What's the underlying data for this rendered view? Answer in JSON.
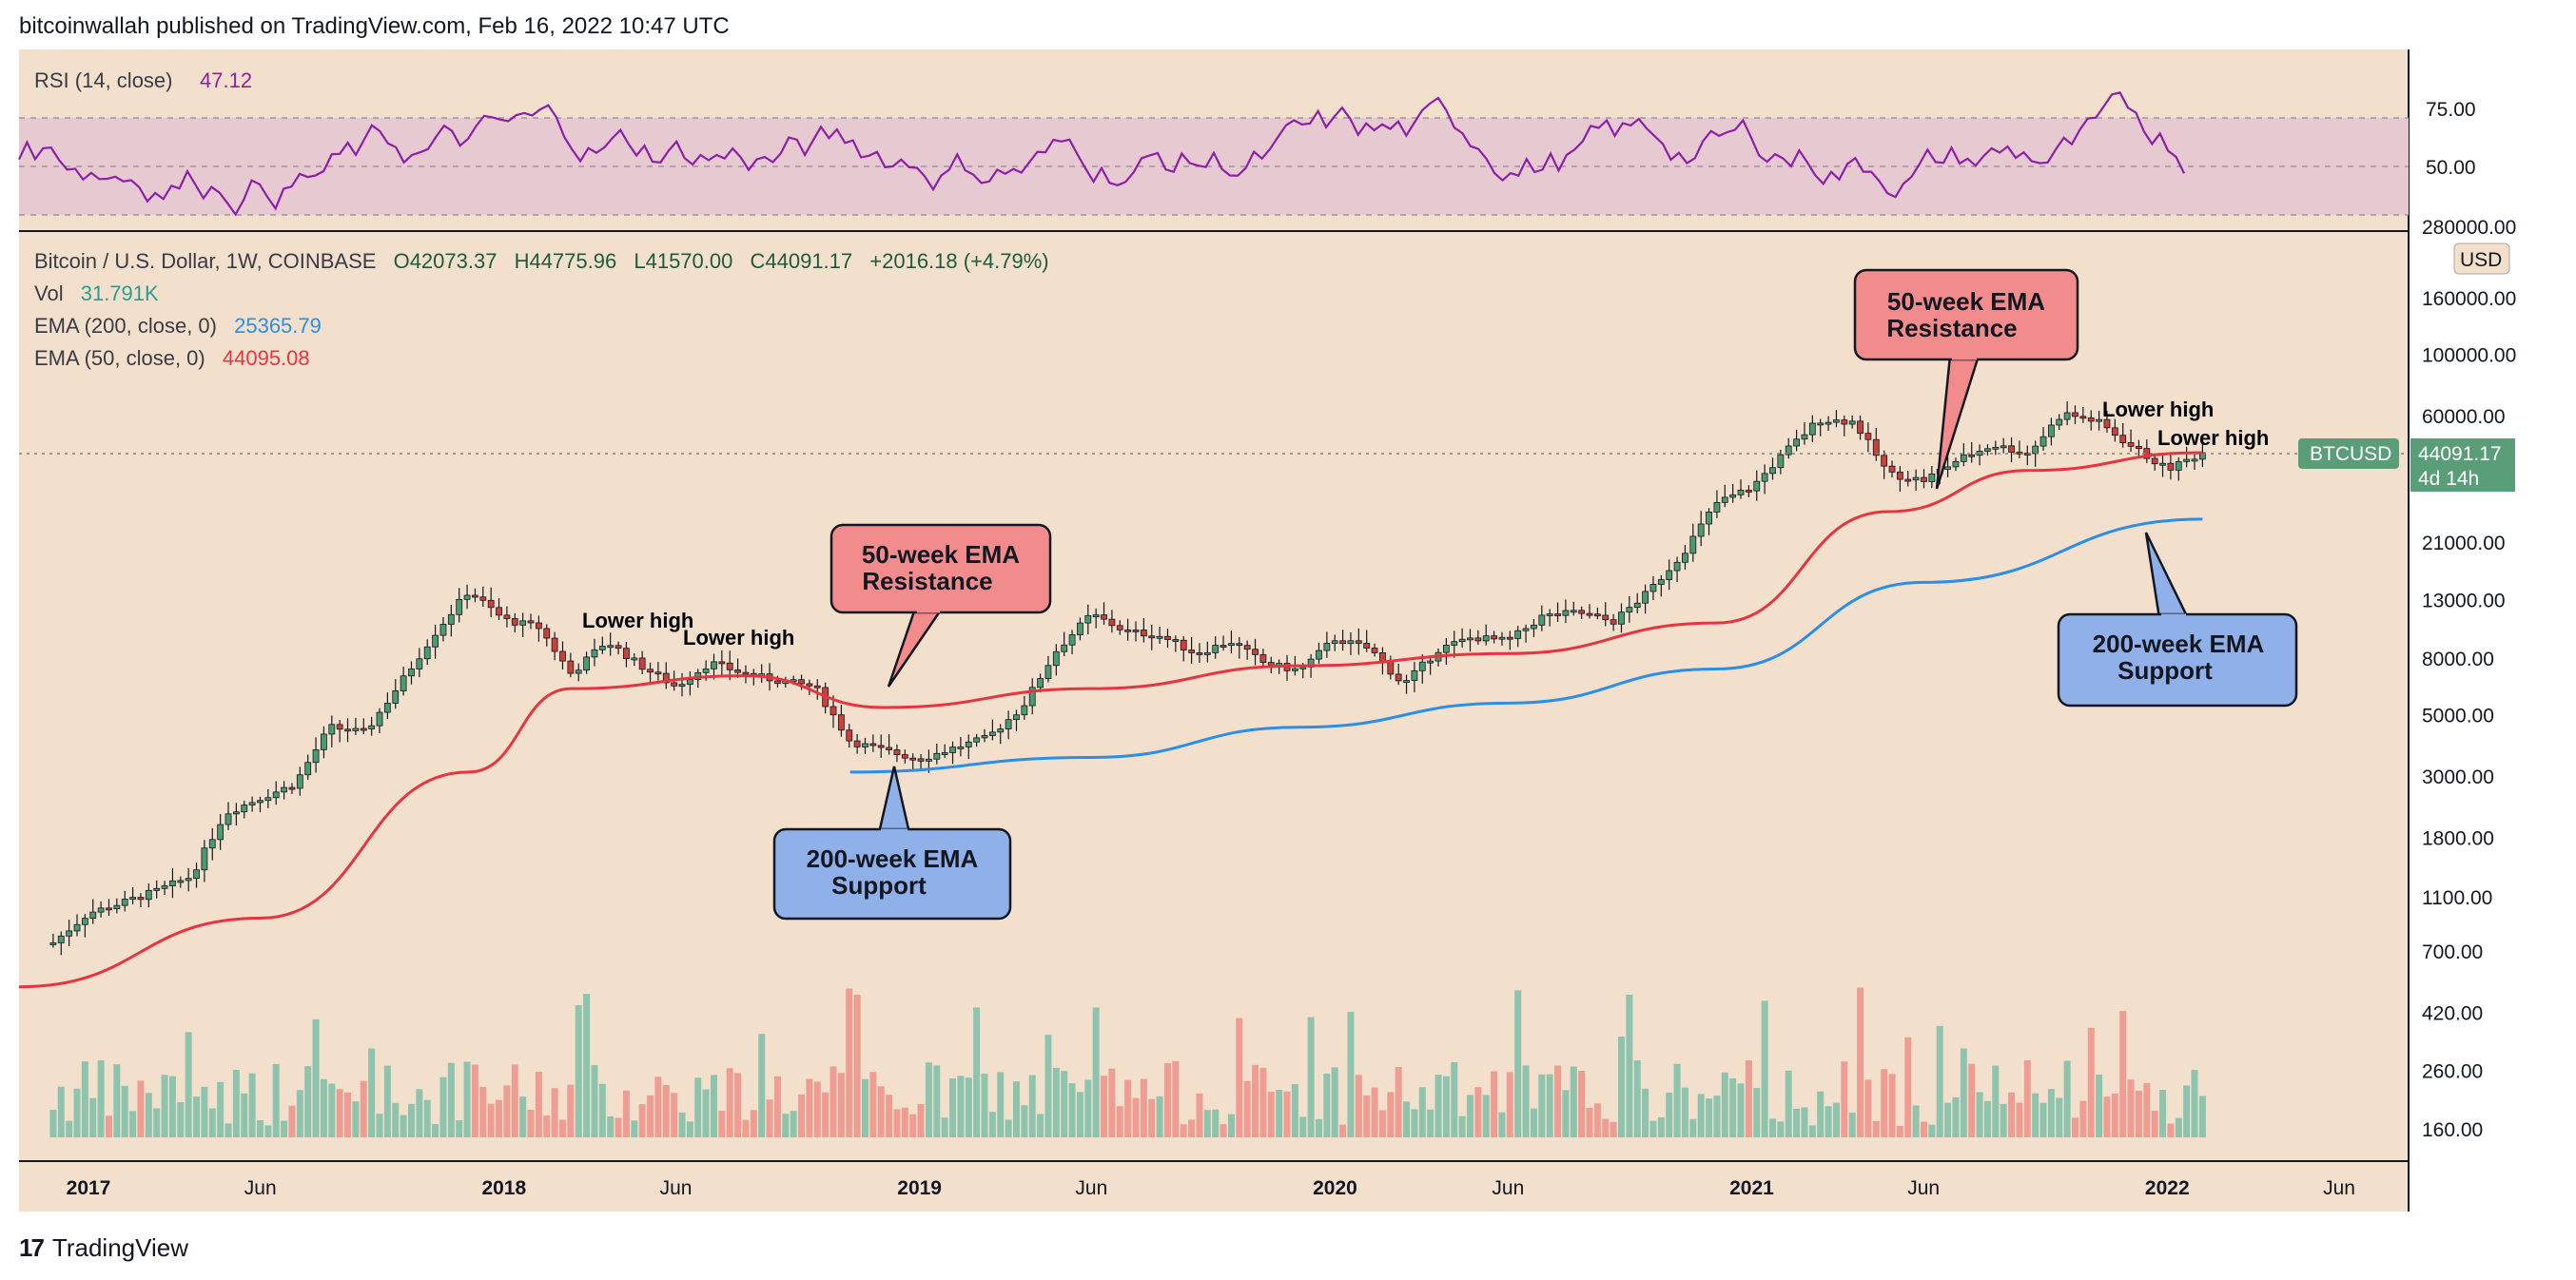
{
  "header": {
    "text": "bitcoinwallah published on TradingView.com, Feb 16, 2022 10:47 UTC"
  },
  "footer": {
    "logo": "17",
    "brand": "TradingView"
  },
  "colors": {
    "background": "#f2e0cd",
    "rsi_band": "#e6c7d2",
    "rsi_line": "#8e1fa6",
    "ema50": "#e8343f",
    "ema200": "#2b8ee8",
    "up": "#4b9a72",
    "down": "#c8413a",
    "vol_up": "#8ec4ad",
    "vol_down": "#ef9d93",
    "red_box": "#f28b8b",
    "blue_box": "#8fb0e8",
    "price_tag": "#5a9e79"
  },
  "rsi": {
    "title": "RSI (14, close)",
    "value": "47.12",
    "levels": [
      "75.00",
      "50.00"
    ]
  },
  "legend": {
    "symbol": "Bitcoin / U.S. Dollar, 1W, COINBASE",
    "o": "O42073.37",
    "h": "H44775.96",
    "l": "L41570.00",
    "c": "C44091.17",
    "chg": "+2016.18 (+4.79%)",
    "vol_label": "Vol",
    "vol_value": "31.791K",
    "ema200_label": "EMA (200, close, 0)",
    "ema200_value": "25365.79",
    "ema50_label": "EMA (50, close, 0)",
    "ema50_value": "44095.08"
  },
  "price_axis": {
    "currency": "USD",
    "ticks": [
      "280000.00",
      "160000.00",
      "100000.00",
      "60000.00",
      "21000.00",
      "13000.00",
      "8000.00",
      "5000.00",
      "3000.00",
      "1800.00",
      "1100.00",
      "700.00",
      "420.00",
      "260.00",
      "160.00"
    ],
    "tick_values": [
      280000,
      160000,
      100000,
      60000,
      21000,
      13000,
      8000,
      5000,
      3000,
      1800,
      1100,
      700,
      420,
      260,
      160
    ],
    "current_tag": {
      "symbol": "BTCUSD",
      "price": "44091.17",
      "countdown": "4d 14h"
    }
  },
  "time_axis": {
    "labels": [
      "2017",
      "Jun",
      "2018",
      "Jun",
      "2019",
      "Jun",
      "2020",
      "Jun",
      "2021",
      "Jun",
      "2022",
      "Jun"
    ],
    "bold": [
      true,
      false,
      true,
      false,
      true,
      false,
      true,
      false,
      true,
      false,
      true,
      false
    ]
  },
  "annotations": {
    "ema50_left": [
      "50-week EMA",
      "Resistance"
    ],
    "ema200_left": [
      "200-week EMA",
      "Support"
    ],
    "ema50_right": [
      "50-week EMA",
      "Resistance"
    ],
    "ema200_right": [
      "200-week EMA",
      "Support"
    ],
    "lower_high_1": "Lower high",
    "lower_high_2": "Lower high",
    "lower_high_3": "Lower high",
    "lower_high_4": "Lower high"
  },
  "chart_data": {
    "type": "line",
    "title": "Bitcoin / U.S. Dollar, 1W, COINBASE",
    "yscale": "log",
    "ylim": [
      120,
      280000
    ],
    "xlim": [
      "2016-11",
      "2022-08"
    ],
    "series": [
      {
        "name": "BTCUSD",
        "x": [
          "2016-12",
          "2017-01",
          "2017-02",
          "2017-03",
          "2017-04",
          "2017-05",
          "2017-06",
          "2017-07",
          "2017-08",
          "2017-09",
          "2017-10",
          "2017-11",
          "2017-12",
          "2018-01",
          "2018-02",
          "2018-03",
          "2018-04",
          "2018-05",
          "2018-06",
          "2018-07",
          "2018-08",
          "2018-09",
          "2018-10",
          "2018-11",
          "2018-12",
          "2019-01",
          "2019-02",
          "2019-03",
          "2019-04",
          "2019-05",
          "2019-06",
          "2019-07",
          "2019-08",
          "2019-09",
          "2019-10",
          "2019-11",
          "2019-12",
          "2020-01",
          "2020-02",
          "2020-03",
          "2020-04",
          "2020-05",
          "2020-06",
          "2020-07",
          "2020-08",
          "2020-09",
          "2020-10",
          "2020-11",
          "2020-12",
          "2021-01",
          "2021-02",
          "2021-03",
          "2021-04",
          "2021-05",
          "2021-06",
          "2021-07",
          "2021-08",
          "2021-09",
          "2021-10",
          "2021-11",
          "2021-12",
          "2022-01",
          "2022-02"
        ],
        "y": [
          750,
          960,
          1050,
          1150,
          1300,
          2200,
          2500,
          2800,
          4500,
          4300,
          6400,
          9800,
          14000,
          11000,
          10300,
          7000,
          9200,
          7500,
          6300,
          7700,
          7000,
          6600,
          6300,
          4000,
          3700,
          3450,
          3800,
          4100,
          5300,
          8500,
          11500,
          10000,
          9600,
          8300,
          9200,
          7600,
          7200,
          9400,
          8600,
          6400,
          8600,
          9500,
          9200,
          11300,
          11700,
          10800,
          13700,
          19000,
          29000,
          33000,
          45000,
          58000,
          57000,
          37000,
          35000,
          41500,
          47000,
          43800,
          61300,
          57000,
          46300,
          38400,
          44091
        ]
      },
      {
        "name": "EMA (50, close, 0)",
        "x": [
          "2016-11",
          "2017-06",
          "2017-12",
          "2018-03",
          "2018-08",
          "2018-12",
          "2019-06",
          "2019-12",
          "2020-06",
          "2020-12",
          "2021-05",
          "2021-09",
          "2022-02"
        ],
        "y": [
          520,
          920,
          3100,
          6200,
          6900,
          5300,
          6200,
          7500,
          8300,
          10700,
          27000,
          38000,
          44095
        ]
      },
      {
        "name": "EMA (200, close, 0)",
        "x": [
          "2018-11",
          "2019-06",
          "2019-12",
          "2020-06",
          "2020-12",
          "2021-06",
          "2022-02"
        ],
        "y": [
          3100,
          3500,
          4500,
          5500,
          7300,
          15000,
          25366
        ]
      }
    ]
  }
}
